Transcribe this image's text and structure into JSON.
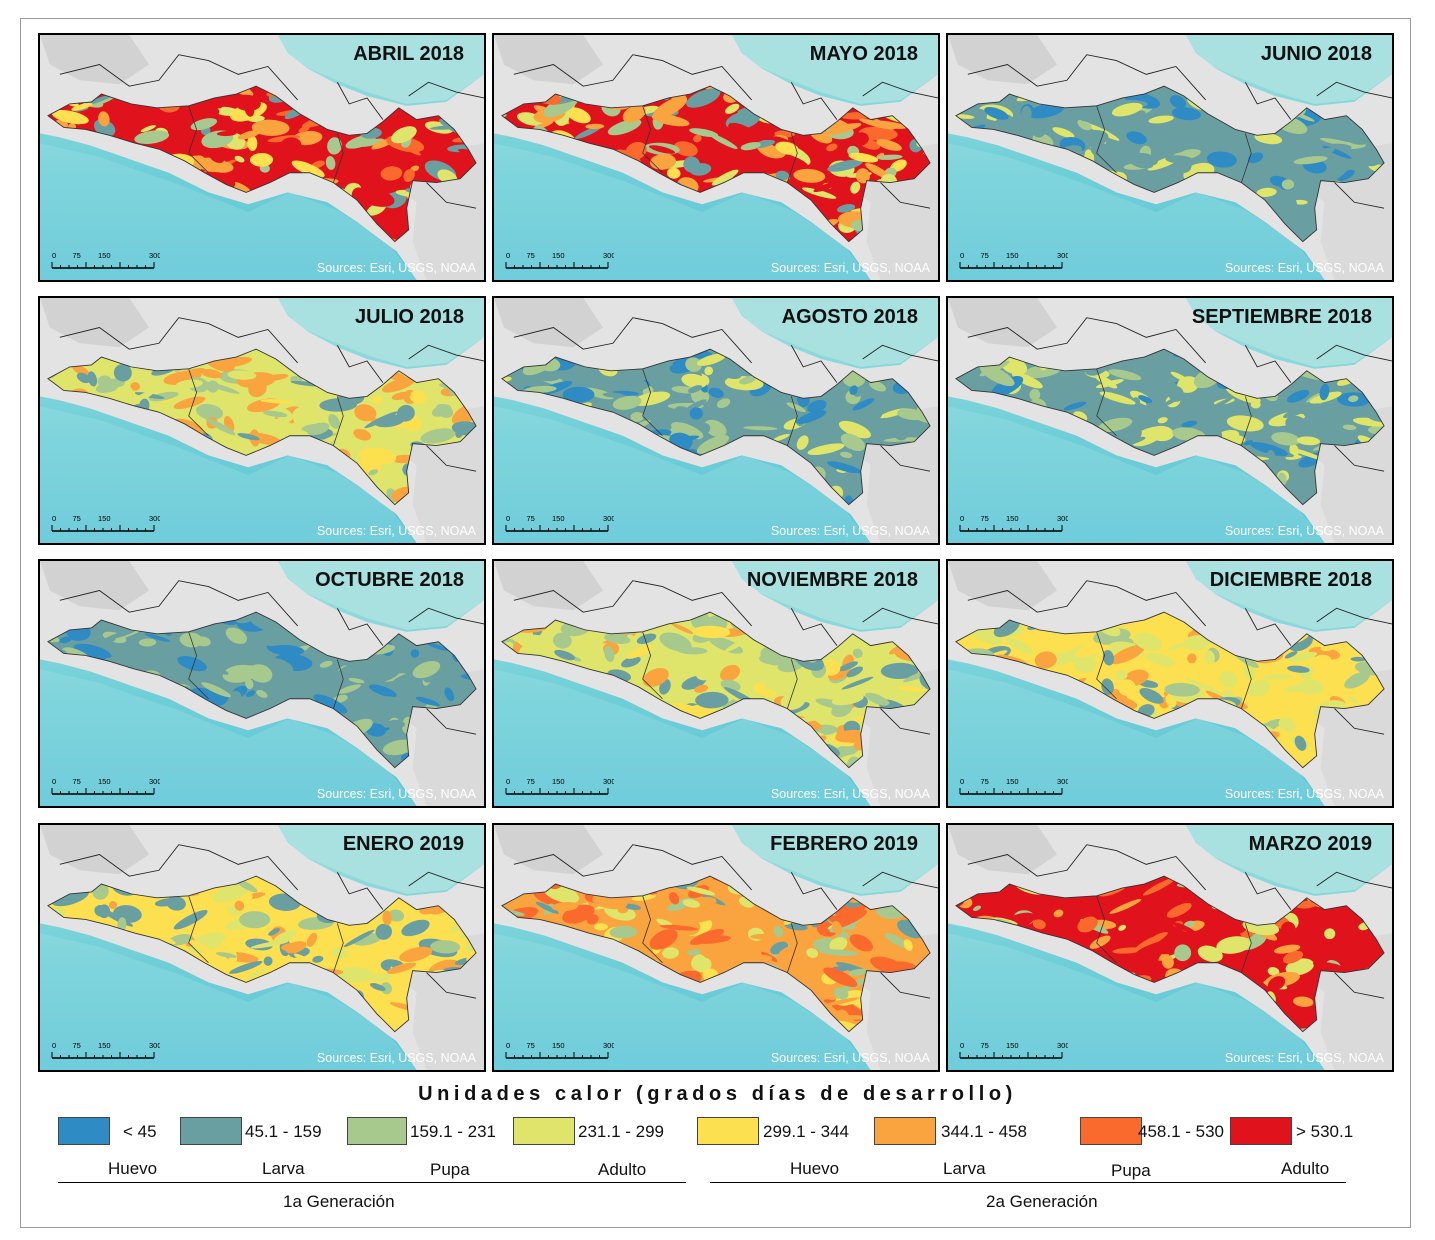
{
  "panels": [
    {
      "title": "ABRIL 2018",
      "source": "Sources: Esri, USGS, NOAA",
      "ramp": [
        "#e0121c",
        "#e0121c",
        "#fb6a2d",
        "#f9a43e",
        "#fce04f",
        "#dfe56a",
        "#a8c98e",
        "#6a9fa2"
      ]
    },
    {
      "title": "MAYO 2018",
      "source": "Sources: Esri, USGS, NOAA",
      "ramp": [
        "#e0121c",
        "#fb6a2d",
        "#f9a43e",
        "#fce04f",
        "#dfe56a",
        "#a8c98e",
        "#6a9fa2",
        "#f9a43e"
      ]
    },
    {
      "title": "JUNIO 2018",
      "source": "Sources: Esri, USGS, NOAA",
      "ramp": [
        "#6a9fa2",
        "#6a9fa2",
        "#2f8bc4",
        "#6a9fa2",
        "#a8c98e",
        "#6a9fa2",
        "#2f8bc4",
        "#dfe56a"
      ]
    },
    {
      "title": "JULIO 2018",
      "source": "Sources: Esri, USGS, NOAA",
      "ramp": [
        "#dfe56a",
        "#a8c98e",
        "#f9a43e",
        "#fce04f",
        "#6a9fa2",
        "#dfe56a",
        "#f9a43e",
        "#a8c98e"
      ]
    },
    {
      "title": "AGOSTO 2018",
      "source": "Sources: Esri, USGS, NOAA",
      "ramp": [
        "#6a9fa2",
        "#a8c98e",
        "#2f8bc4",
        "#6a9fa2",
        "#dfe56a",
        "#6a9fa2",
        "#a8c98e",
        "#2f8bc4"
      ]
    },
    {
      "title": "SEPTIEMBRE 2018",
      "source": "Sources: Esri, USGS, NOAA",
      "ramp": [
        "#6a9fa2",
        "#a8c98e",
        "#dfe56a",
        "#6a9fa2",
        "#2f8bc4",
        "#a8c98e",
        "#dfe56a",
        "#6a9fa2"
      ]
    },
    {
      "title": "OCTUBRE 2018",
      "source": "Sources: Esri, USGS, NOAA",
      "ramp": [
        "#6a9fa2",
        "#2f8bc4",
        "#a8c98e",
        "#6a9fa2",
        "#2f8bc4",
        "#6a9fa2",
        "#a8c98e",
        "#6a9fa2"
      ]
    },
    {
      "title": "NOVIEMBRE 2018",
      "source": "Sources: Esri, USGS, NOAA",
      "ramp": [
        "#dfe56a",
        "#a8c98e",
        "#fce04f",
        "#f9a43e",
        "#6a9fa2",
        "#dfe56a",
        "#a8c98e",
        "#6a9fa2"
      ]
    },
    {
      "title": "DICIEMBRE 2018",
      "source": "Sources: Esri, USGS, NOAA",
      "ramp": [
        "#fce04f",
        "#f9a43e",
        "#dfe56a",
        "#a8c98e",
        "#6a9fa2",
        "#f9a43e",
        "#fce04f",
        "#dfe56a"
      ]
    },
    {
      "title": "ENERO 2019",
      "source": "Sources: Esri, USGS, NOAA",
      "ramp": [
        "#fce04f",
        "#f9a43e",
        "#dfe56a",
        "#a8c98e",
        "#6a9fa2",
        "#f9a43e",
        "#fce04f",
        "#6a9fa2"
      ]
    },
    {
      "title": "FEBRERO 2019",
      "source": "Sources: Esri, USGS, NOAA",
      "ramp": [
        "#f9a43e",
        "#fb6a2d",
        "#fce04f",
        "#dfe56a",
        "#a8c98e",
        "#f9a43e",
        "#fb6a2d",
        "#6a9fa2"
      ]
    },
    {
      "title": "MARZO 2019",
      "source": "Sources: Esri, USGS, NOAA",
      "ramp": [
        "#e0121c",
        "#e0121c",
        "#fb6a2d",
        "#e0121c",
        "#f9a43e",
        "#e0121c",
        "#dfe56a",
        "#a8c98e"
      ]
    }
  ],
  "scale_bar": {
    "ticks": [
      "0",
      "75",
      "150",
      "300 km"
    ]
  },
  "legend": {
    "title": "Unidades calor (grados días de desarrollo)",
    "classes": [
      {
        "label": "< 45",
        "color": "#2f8bc4"
      },
      {
        "label": "45.1 - 159",
        "color": "#6a9fa2"
      },
      {
        "label": "159.1 - 231",
        "color": "#a8c98e"
      },
      {
        "label": "231.1 - 299",
        "color": "#dfe56a"
      },
      {
        "label": "299.1 - 344",
        "color": "#fce04f"
      },
      {
        "label": "344.1 - 458",
        "color": "#f9a43e"
      },
      {
        "label": "458.1 - 530",
        "color": "#fb6a2d"
      },
      {
        "label": "> 530.1",
        "color": "#e0121c"
      }
    ],
    "stages": [
      "Huevo",
      "Larva",
      "Pupa",
      "Adulto",
      "Huevo",
      "Larva",
      "Pupa",
      "Adulto"
    ],
    "generations": [
      "1a Generación",
      "2a Generación"
    ]
  }
}
